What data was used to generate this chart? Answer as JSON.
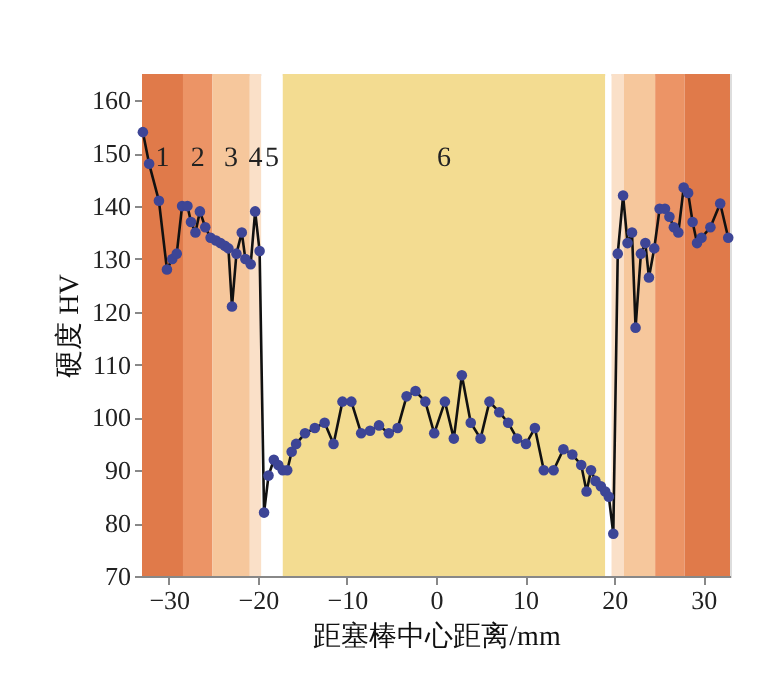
{
  "chart_data": {
    "type": "line",
    "xlabel": "距塞棒中心距离/mm",
    "ylabel": "硬度 HV",
    "xlim": [
      -33,
      33
    ],
    "ylim": [
      70,
      165
    ],
    "xticks": [
      {
        "value": -30,
        "label": "−30"
      },
      {
        "value": -20,
        "label": "−20"
      },
      {
        "value": -10,
        "label": "−10"
      },
      0,
      10,
      20,
      30
    ],
    "yticks": [
      70,
      80,
      90,
      100,
      110,
      120,
      130,
      140,
      150,
      160
    ],
    "grid": false,
    "marker": "circle",
    "line_style": "solid",
    "bands": [
      {
        "axis": "x",
        "from": -33,
        "to": -28.4,
        "label": "1",
        "color": "#e07a4a"
      },
      {
        "axis": "x",
        "from": -28.4,
        "to": -25.1,
        "label": "2",
        "color": "#ec9466"
      },
      {
        "axis": "x",
        "from": -25.1,
        "to": -20.9,
        "label": "3",
        "color": "#f6c79c"
      },
      {
        "axis": "x",
        "from": -20.9,
        "to": -19.6,
        "label": "4",
        "color": "#fae0c8"
      },
      {
        "axis": "x",
        "from": -19.6,
        "to": -17.2,
        "label": "5",
        "color": "#ffffff"
      },
      {
        "axis": "x",
        "from": -17.2,
        "to": 19.0,
        "label": "6",
        "color": "#f3dc91"
      },
      {
        "axis": "x",
        "from": 19.0,
        "to": 19.7,
        "color": "#ffffff"
      },
      {
        "axis": "x",
        "from": 19.7,
        "to": 21.1,
        "color": "#fae0c8"
      },
      {
        "axis": "x",
        "from": 21.1,
        "to": 24.6,
        "color": "#f6c79c"
      },
      {
        "axis": "x",
        "from": 24.6,
        "to": 27.9,
        "color": "#ec9466"
      },
      {
        "axis": "x",
        "from": 27.9,
        "to": 33,
        "color": "#e07a4a"
      }
    ],
    "series": [
      {
        "color": "#3d4596",
        "x": [
          -32.9,
          -32.2,
          -31.1,
          -30.2,
          -29.6,
          -29.1,
          -28.5,
          -27.9,
          -27.5,
          -27.0,
          -26.5,
          -25.9,
          -25.3,
          -24.7,
          -24.2,
          -23.7,
          -23.3,
          -22.9,
          -22.4,
          -21.8,
          -21.4,
          -20.8,
          -20.3,
          -19.8,
          -19.3,
          -18.8,
          -18.2,
          -17.7,
          -17.2,
          -16.7,
          -16.2,
          -15.7,
          -14.7,
          -13.6,
          -12.5,
          -11.5,
          -10.5,
          -9.5,
          -8.4,
          -7.4,
          -6.4,
          -5.3,
          -4.3,
          -3.3,
          -2.3,
          -1.2,
          -0.2,
          1.0,
          2.0,
          2.9,
          3.9,
          5.0,
          6.0,
          7.1,
          8.1,
          9.1,
          10.1,
          11.1,
          12.1,
          13.2,
          14.3,
          15.3,
          16.3,
          16.9,
          17.4,
          17.9,
          18.5,
          19.0,
          19.4,
          19.9,
          20.4,
          21.0,
          21.5,
          22.0,
          22.4,
          23.0,
          23.5,
          23.9,
          24.5,
          25.1,
          25.7,
          26.2,
          26.7,
          27.2,
          27.8,
          28.3,
          28.8,
          29.3,
          29.8,
          30.8,
          31.9,
          32.8
        ],
        "values": [
          154,
          148,
          141,
          128,
          130,
          131,
          140,
          140,
          137,
          135,
          139,
          136,
          134,
          133.5,
          133,
          132.5,
          132,
          121,
          131,
          135,
          130,
          129,
          139,
          131.5,
          82,
          89,
          92,
          91,
          90,
          90,
          93.5,
          95,
          97,
          98,
          99,
          95,
          103,
          103,
          97,
          97.5,
          98.5,
          97,
          98,
          104,
          105,
          103,
          97,
          103,
          96,
          108,
          99,
          96,
          103,
          101,
          99,
          96,
          95,
          98,
          90,
          90,
          94,
          93,
          91,
          86,
          90,
          88,
          87,
          86,
          85,
          78,
          131,
          142,
          133,
          135,
          117,
          131,
          133,
          126.5,
          132,
          139.5,
          139.5,
          138,
          136,
          135,
          143.5,
          142.5,
          137,
          133,
          134,
          136,
          140.5,
          134
        ]
      }
    ]
  }
}
